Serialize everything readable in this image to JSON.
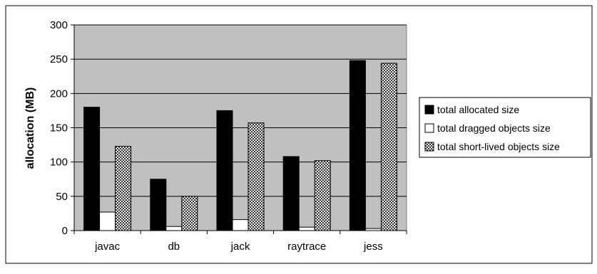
{
  "chart_data": {
    "type": "bar",
    "categories": [
      "javac",
      "db",
      "jack",
      "raytrace",
      "jess"
    ],
    "series": [
      {
        "name": "total allocated size",
        "values": [
          180,
          75,
          175,
          108,
          248
        ],
        "color": "#000000",
        "pattern": "solid"
      },
      {
        "name": "total dragged objects size",
        "values": [
          27,
          6,
          16,
          5,
          3
        ],
        "color": "#ffffff",
        "pattern": "solid"
      },
      {
        "name": "total short-lived objects size",
        "values": [
          123,
          50,
          157,
          102,
          244
        ],
        "color": "#7a7a7a",
        "pattern": "checker"
      }
    ],
    "title": "",
    "xlabel": "",
    "ylabel": "allocation (MB)",
    "ylim": [
      0,
      300
    ],
    "yticks": [
      0,
      50,
      100,
      150,
      200,
      250,
      300
    ],
    "grid": true,
    "legend_position": "right",
    "plot_background": "#c0c0c0"
  }
}
